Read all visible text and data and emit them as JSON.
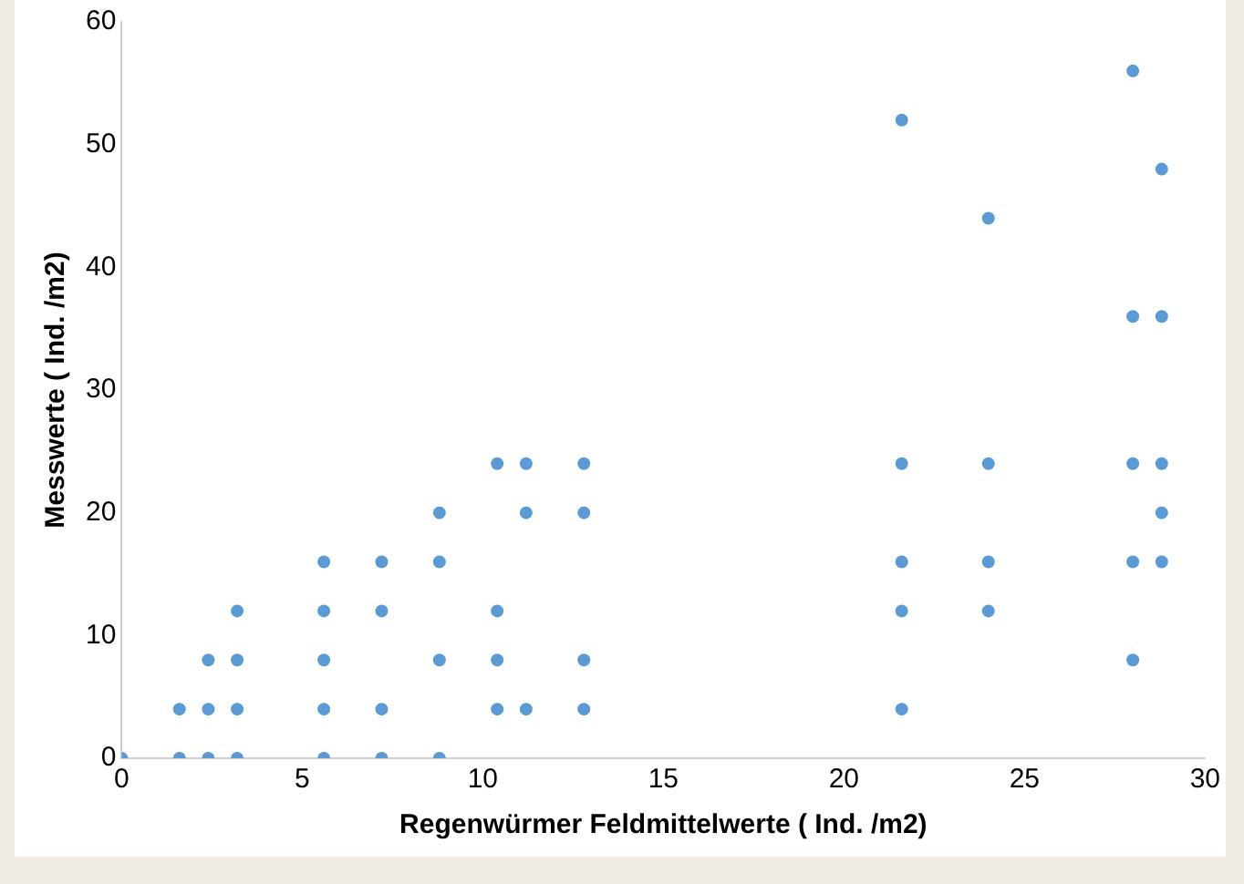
{
  "chart_data": {
    "type": "scatter",
    "xlabel": "Regenwürmer Feldmittelwerte ( Ind. /m2)",
    "ylabel": "Messwerte ( Ind. /m2)",
    "x": [
      0,
      1.6,
      1.6,
      2.4,
      2.4,
      2.4,
      3.2,
      3.2,
      3.2,
      3.2,
      5.6,
      5.6,
      5.6,
      5.6,
      5.6,
      7.2,
      7.2,
      7.2,
      7.2,
      8.8,
      8.8,
      8.8,
      8.8,
      10.4,
      10.4,
      10.4,
      10.4,
      11.2,
      11.2,
      11.2,
      12.8,
      12.8,
      12.8,
      12.8,
      21.6,
      21.6,
      21.6,
      21.6,
      21.6,
      24,
      24,
      24,
      24,
      28,
      28,
      28,
      28,
      28,
      28.8,
      28.8,
      28.8,
      28.8,
      28.8
    ],
    "values": [
      0,
      0,
      4,
      0,
      4,
      8,
      0,
      4,
      8,
      12,
      0,
      4,
      8,
      12,
      16,
      0,
      4,
      12,
      16,
      0,
      8,
      16,
      20,
      4,
      8,
      12,
      24,
      4,
      20,
      24,
      4,
      8,
      20,
      24,
      4,
      12,
      16,
      24,
      52,
      12,
      16,
      24,
      44,
      8,
      16,
      24,
      36,
      56,
      16,
      20,
      24,
      36,
      48
    ],
    "color": "#5b9bd5",
    "marker": "circle",
    "xlim": [
      0,
      30
    ],
    "xticks": [
      0,
      5,
      10,
      15,
      20,
      25,
      30
    ],
    "ylim": [
      0,
      60
    ],
    "yticks": [
      0,
      10,
      20,
      30,
      40,
      50,
      60
    ],
    "grid": false,
    "legend": false
  }
}
